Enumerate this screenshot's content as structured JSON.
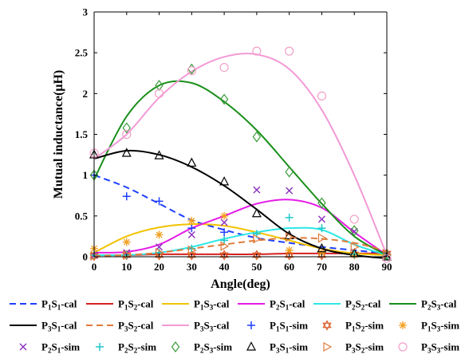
{
  "chart_data": {
    "type": "line",
    "xlabel": "Angle(deg)",
    "ylabel": "Mutual inductance(μH)",
    "xlim": [
      0,
      90
    ],
    "ylim": [
      0,
      3
    ],
    "xticks": [
      "0",
      "10",
      "20",
      "30",
      "40",
      "50",
      "60",
      "70",
      "80",
      "90"
    ],
    "yticks": [
      "0",
      "0.5",
      "1",
      "1.5",
      "2",
      "2.5",
      "3"
    ],
    "grid": false,
    "legend_position": "bottom",
    "x": [
      0,
      10,
      20,
      30,
      40,
      50,
      60,
      70,
      80,
      90
    ],
    "series": [
      {
        "name": "P1S1-cal",
        "sub": [
          "P",
          "1",
          "S",
          "1",
          "-cal"
        ],
        "kind": "cal",
        "color": "#1f3fff",
        "dash": "8,5",
        "values": [
          1.0,
          0.85,
          0.65,
          0.45,
          0.33,
          0.23,
          0.17,
          0.12,
          0.08,
          0.04
        ]
      },
      {
        "name": "P1S2-cal",
        "sub": [
          "P",
          "1",
          "S",
          "2",
          "-cal"
        ],
        "kind": "cal",
        "color": "#d62020",
        "dash": "",
        "values": [
          0.02,
          0.02,
          0.03,
          0.03,
          0.03,
          0.03,
          0.04,
          0.04,
          0.04,
          0.04
        ]
      },
      {
        "name": "P1S3-cal",
        "sub": [
          "P",
          "1",
          "S",
          "3",
          "-cal"
        ],
        "kind": "cal",
        "color": "#f2c200",
        "dash": "",
        "values": [
          0.05,
          0.25,
          0.36,
          0.4,
          0.38,
          0.3,
          0.2,
          0.1,
          0.04,
          0.02
        ]
      },
      {
        "name": "P2S1-cal",
        "sub": [
          "P",
          "2",
          "S",
          "1",
          "-cal"
        ],
        "kind": "cal",
        "color": "#e61ce6",
        "dash": "",
        "values": [
          0.05,
          0.06,
          0.15,
          0.35,
          0.5,
          0.65,
          0.7,
          0.6,
          0.3,
          0.02
        ]
      },
      {
        "name": "P2S2-cal",
        "sub": [
          "P",
          "2",
          "S",
          "2",
          "-cal"
        ],
        "kind": "cal",
        "color": "#2ee6e6",
        "dash": "",
        "values": [
          0.02,
          0.02,
          0.05,
          0.12,
          0.22,
          0.3,
          0.35,
          0.33,
          0.15,
          0.02
        ]
      },
      {
        "name": "P2S3-cal",
        "sub": [
          "P",
          "2",
          "S",
          "3",
          "-cal"
        ],
        "kind": "cal",
        "color": "#1a8f1a",
        "dash": "",
        "values": [
          0.95,
          1.72,
          2.1,
          2.13,
          1.9,
          1.55,
          1.1,
          0.65,
          0.25,
          0.02
        ]
      },
      {
        "name": "P3S1-cal",
        "sub": [
          "P",
          "3",
          "S",
          "1",
          "-cal"
        ],
        "kind": "cal",
        "color": "#000000",
        "dash": "",
        "values": [
          1.2,
          1.3,
          1.25,
          1.1,
          0.87,
          0.58,
          0.28,
          0.1,
          0.02,
          -0.02
        ]
      },
      {
        "name": "P3S2-cal",
        "sub": [
          "P",
          "3",
          "S",
          "2",
          "-cal"
        ],
        "kind": "cal",
        "color": "#e07a3a",
        "dash": "8,5",
        "values": [
          0.01,
          0.02,
          0.05,
          0.1,
          0.15,
          0.2,
          0.23,
          0.22,
          0.17,
          0.07
        ]
      },
      {
        "name": "P3S3-cal",
        "sub": [
          "P",
          "3",
          "S",
          "3",
          "-cal"
        ],
        "kind": "cal",
        "color": "#f29ad6",
        "dash": "",
        "values": [
          1.2,
          1.5,
          1.95,
          2.27,
          2.45,
          2.48,
          2.3,
          1.8,
          1.0,
          0.02
        ]
      },
      {
        "name": "P1S1-sim",
        "sub": [
          "P",
          "1",
          "S",
          "1",
          "-sim"
        ],
        "kind": "sim",
        "marker": "plus",
        "color": "#1f3fff",
        "values": [
          1.0,
          0.74,
          0.68,
          0.35,
          0.3,
          null,
          null,
          null,
          null,
          null
        ]
      },
      {
        "name": "P1S2-sim",
        "sub": [
          "P",
          "1",
          "S",
          "2",
          "-sim"
        ],
        "kind": "sim",
        "marker": "hexagram",
        "color": "#d9551f",
        "values": [
          0.01,
          0.02,
          0.02,
          0.02,
          0.02,
          0.02,
          0.02,
          0.02,
          0.03,
          0.04
        ]
      },
      {
        "name": "P1S3-sim",
        "sub": [
          "P",
          "1",
          "S",
          "3",
          "-sim"
        ],
        "kind": "sim",
        "marker": "asterisk",
        "color": "#f2a020",
        "values": [
          0.1,
          0.18,
          0.27,
          0.44,
          0.5,
          null,
          0.08,
          0.05,
          0.02,
          0.02
        ]
      },
      {
        "name": "P2S1-sim",
        "sub": [
          "P",
          "2",
          "S",
          "1",
          "-sim"
        ],
        "kind": "sim",
        "marker": "x",
        "color": "#8a2fbf",
        "values": [
          0.02,
          0.05,
          0.12,
          0.27,
          0.42,
          0.82,
          0.81,
          0.46,
          0.31,
          0.02
        ]
      },
      {
        "name": "P2S2-sim",
        "sub": [
          "P",
          "2",
          "S",
          "2",
          "-sim"
        ],
        "kind": "sim",
        "marker": "plus",
        "color": "#1fc7c7",
        "values": [
          0.02,
          0.02,
          0.05,
          0.1,
          0.2,
          0.28,
          0.48,
          0.35,
          0.03,
          0.02
        ]
      },
      {
        "name": "P2S3-sim",
        "sub": [
          "P",
          "2",
          "S",
          "3",
          "-sim"
        ],
        "kind": "sim",
        "marker": "diamond",
        "color": "#3a9a3a",
        "values": [
          1.0,
          1.58,
          2.1,
          2.3,
          1.93,
          1.47,
          1.04,
          0.66,
          0.32,
          0.02
        ]
      },
      {
        "name": "P3S1-sim",
        "sub": [
          "P",
          "3",
          "S",
          "1",
          "-sim"
        ],
        "kind": "sim",
        "marker": "triangle",
        "color": "#000000",
        "values": [
          1.25,
          1.27,
          1.24,
          1.15,
          0.92,
          0.53,
          0.26,
          0.1,
          0.04,
          0.0
        ]
      },
      {
        "name": "P3S2-sim",
        "sub": [
          "P",
          "3",
          "S",
          "2",
          "-sim"
        ],
        "kind": "sim",
        "marker": "triangle-right",
        "color": "#e07a3a",
        "values": [
          0.01,
          0.02,
          0.05,
          0.08,
          0.13,
          0.22,
          0.24,
          0.23,
          0.12,
          0.03
        ]
      },
      {
        "name": "P3S3-sim",
        "sub": [
          "P",
          "3",
          "S",
          "3",
          "-sim"
        ],
        "kind": "sim",
        "marker": "circle",
        "color": "#f2a0c8",
        "values": [
          1.27,
          1.5,
          2.0,
          2.28,
          2.32,
          2.52,
          2.52,
          1.97,
          0.46,
          -0.02
        ]
      }
    ]
  }
}
